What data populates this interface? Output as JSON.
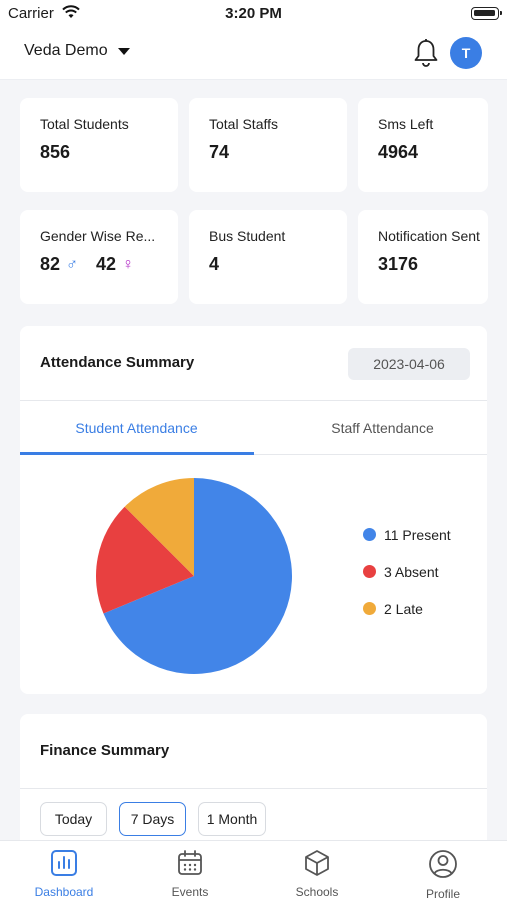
{
  "status": {
    "carrier": "Carrier",
    "time": "3:20 PM"
  },
  "header": {
    "school_name": "Veda Demo",
    "avatar_initial": "T"
  },
  "stats": [
    {
      "label": "Total Students",
      "value": "856"
    },
    {
      "label": "Total Staffs",
      "value": "74"
    },
    {
      "label": "Sms Left",
      "value": "4964"
    },
    {
      "label": "Gender Wise Re...",
      "male": "82",
      "female": "42",
      "male_symbol": "♂",
      "female_symbol": "♀"
    },
    {
      "label": "Bus Student",
      "value": "4"
    },
    {
      "label": "Notification Sent",
      "value": "3176"
    }
  ],
  "attendance": {
    "title": "Attendance Summary",
    "date": "2023-04-06",
    "tabs": [
      "Student Attendance",
      "Staff Attendance"
    ],
    "active_tab": 0
  },
  "chart_data": {
    "type": "pie",
    "labels": [
      "Present",
      "Absent",
      "Late"
    ],
    "values": [
      11,
      3,
      2
    ],
    "colors": [
      "#4285e8",
      "#e84040",
      "#f0aa3a"
    ],
    "legend": [
      "11 Present",
      "3 Absent",
      "2 Late"
    ],
    "legend_position": "right"
  },
  "finance": {
    "title": "Finance Summary",
    "periods": [
      "Today",
      "7 Days",
      "1 Month"
    ],
    "active_period": 1
  },
  "tab_bar": [
    {
      "label": "Dashboard",
      "icon": "dashboard-icon",
      "active": true
    },
    {
      "label": "Events",
      "icon": "calendar-icon",
      "active": false
    },
    {
      "label": "Schools",
      "icon": "cube-icon",
      "active": false
    },
    {
      "label": "Profile",
      "icon": "profile-icon",
      "active": false
    }
  ],
  "colors": {
    "accent": "#3a7ee4",
    "female": "#b433c8"
  }
}
